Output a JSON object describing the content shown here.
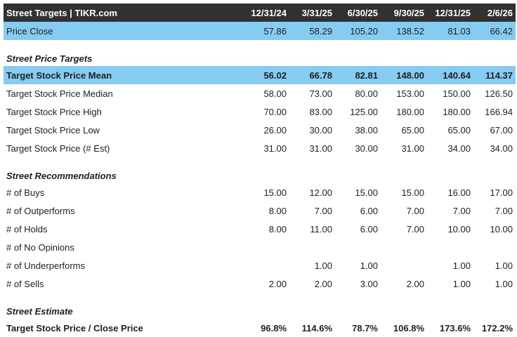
{
  "colors": {
    "header_bg": "#313131",
    "header_text": "#FFFFFF",
    "highlight_row_bg": "#85CBF2",
    "body_text": "#212121",
    "page_bg": "#FFFFFF"
  },
  "header": {
    "title": "Street Targets | TIKR.com",
    "dates": [
      "12/31/24",
      "3/31/25",
      "6/30/25",
      "9/30/25",
      "12/31/25",
      "2/6/26"
    ]
  },
  "price_close": {
    "label": "Price Close",
    "values": [
      "57.86",
      "58.29",
      "105.20",
      "138.52",
      "81.03",
      "66.42"
    ]
  },
  "sections": [
    {
      "title": "Street Price Targets",
      "rows": [
        {
          "label": "Target Stock Price Mean",
          "values": [
            "56.02",
            "66.78",
            "82.81",
            "148.00",
            "140.64",
            "114.37"
          ]
        },
        {
          "label": "Target Stock Price Median",
          "values": [
            "58.00",
            "73.00",
            "80.00",
            "153.00",
            "150.00",
            "126.50"
          ]
        },
        {
          "label": "Target Stock Price High",
          "values": [
            "70.00",
            "83.00",
            "125.00",
            "180.00",
            "180.00",
            "166.94"
          ]
        },
        {
          "label": "Target Stock Price Low",
          "values": [
            "26.00",
            "30.00",
            "38.00",
            "65.00",
            "65.00",
            "67.00"
          ]
        },
        {
          "label": "Target Stock Price (# Est)",
          "values": [
            "31.00",
            "31.00",
            "30.00",
            "31.00",
            "34.00",
            "34.00"
          ]
        }
      ]
    },
    {
      "title": "Street Recommendations",
      "rows": [
        {
          "label": "# of Buys",
          "values": [
            "15.00",
            "12.00",
            "15.00",
            "15.00",
            "16.00",
            "17.00"
          ]
        },
        {
          "label": "# of Outperforms",
          "values": [
            "8.00",
            "7.00",
            "6.00",
            "7.00",
            "7.00",
            "7.00"
          ]
        },
        {
          "label": "# of Holds",
          "values": [
            "8.00",
            "11.00",
            "6.00",
            "7.00",
            "10.00",
            "10.00"
          ]
        },
        {
          "label": "# of No Opinions",
          "values": [
            "",
            "",
            "",
            "",
            "",
            ""
          ]
        },
        {
          "label": "# of Underperforms",
          "values": [
            "",
            "1.00",
            "1.00",
            "",
            "1.00",
            "1.00"
          ]
        },
        {
          "label": "# of Sells",
          "values": [
            "2.00",
            "2.00",
            "3.00",
            "2.00",
            "1.00",
            "1.00"
          ]
        }
      ]
    },
    {
      "title": "Street Estimate",
      "rows": [
        {
          "label": "Target Stock Price / Close Price",
          "values": [
            "96.8%",
            "114.6%",
            "78.7%",
            "106.8%",
            "173.6%",
            "172.2%"
          ]
        }
      ]
    }
  ]
}
